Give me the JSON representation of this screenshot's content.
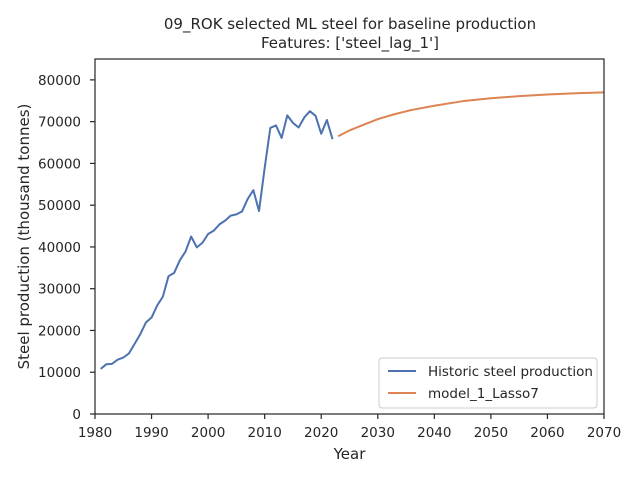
{
  "chart_data": {
    "type": "line",
    "title": "09_ROK selected ML steel for baseline production",
    "subtitle": "Features: ['steel_lag_1']",
    "xlabel": "Year",
    "ylabel": "Steel production (thousand tonnes)",
    "xlim": [
      1980,
      2070
    ],
    "ylim": [
      0,
      85000
    ],
    "xticks": [
      1980,
      1990,
      2000,
      2010,
      2020,
      2030,
      2040,
      2050,
      2060,
      2070
    ],
    "yticks": [
      0,
      10000,
      20000,
      30000,
      40000,
      50000,
      60000,
      70000,
      80000
    ],
    "grid": false,
    "legend_position": "lower-right",
    "series": [
      {
        "name": "Historic steel production",
        "color": "#4c72b0",
        "x": [
          1981,
          1982,
          1983,
          1984,
          1985,
          1986,
          1987,
          1988,
          1989,
          1990,
          1991,
          1992,
          1993,
          1994,
          1995,
          1996,
          1997,
          1998,
          1999,
          2000,
          2001,
          2002,
          2003,
          2004,
          2005,
          2006,
          2007,
          2008,
          2009,
          2010,
          2011,
          2012,
          2013,
          2014,
          2015,
          2016,
          2017,
          2018,
          2019,
          2020,
          2021,
          2022
        ],
        "y": [
          10800,
          11900,
          12000,
          13000,
          13500,
          14500,
          16800,
          19100,
          21900,
          23100,
          26000,
          28100,
          33000,
          33800,
          36800,
          38900,
          42500,
          39900,
          41000,
          43100,
          43900,
          45400,
          46300,
          47500,
          47800,
          48500,
          51500,
          53600,
          48600,
          58900,
          68500,
          69100,
          66100,
          71500,
          69700,
          68600,
          71000,
          72500,
          71400,
          67100,
          70400,
          65800
        ]
      },
      {
        "name": "model_1_Lasso7",
        "color": "#dd8452",
        "x": [
          2023,
          2025,
          2027,
          2030,
          2033,
          2036,
          2040,
          2045,
          2050,
          2055,
          2060,
          2065,
          2070
        ],
        "y": [
          66500,
          67900,
          69000,
          70600,
          71800,
          72800,
          73800,
          74900,
          75600,
          76100,
          76500,
          76800,
          77000
        ]
      }
    ]
  }
}
